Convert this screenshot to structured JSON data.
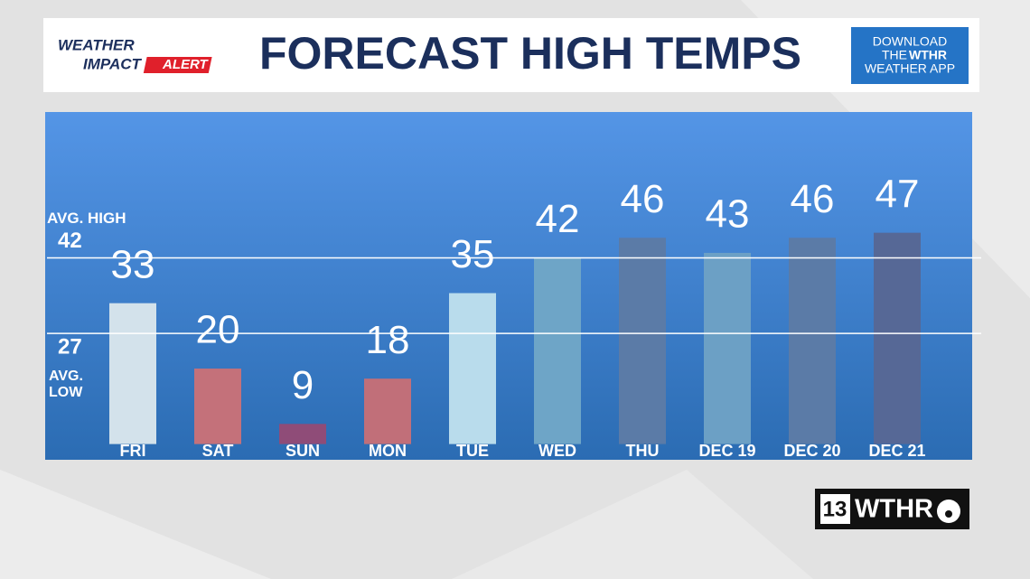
{
  "header": {
    "logo": {
      "top": "WEATHER",
      "impact": "IMPACT",
      "alert": "ALERT"
    },
    "app_promo": {
      "line1": "DOWNLOAD",
      "line2a": "THE",
      "line2b": "WTHR",
      "line3": "WEATHER APP"
    }
  },
  "chart_data": {
    "type": "bar",
    "title": "FORECAST HIGH TEMPS",
    "categories": [
      "FRI",
      "SAT",
      "SUN",
      "MON",
      "TUE",
      "WED",
      "THU",
      "DEC 19",
      "DEC 20",
      "DEC 21"
    ],
    "values": [
      33,
      20,
      9,
      18,
      35,
      42,
      46,
      43,
      46,
      47
    ],
    "colors": [
      "#d3e2eb",
      "#c4717a",
      "#8f4c78",
      "#c16f79",
      "#b9dcec",
      "#6ea5c7",
      "#5b7ba7",
      "#6ca0c5",
      "#5b7ba7",
      "#566896"
    ],
    "ylim": [
      5,
      71
    ],
    "reference_lines": [
      {
        "label": "AVG. HIGH",
        "value": 42
      },
      {
        "label": "AVG. LOW",
        "value": 27
      }
    ]
  },
  "branding": {
    "channel": "13",
    "station": "WTHR"
  }
}
